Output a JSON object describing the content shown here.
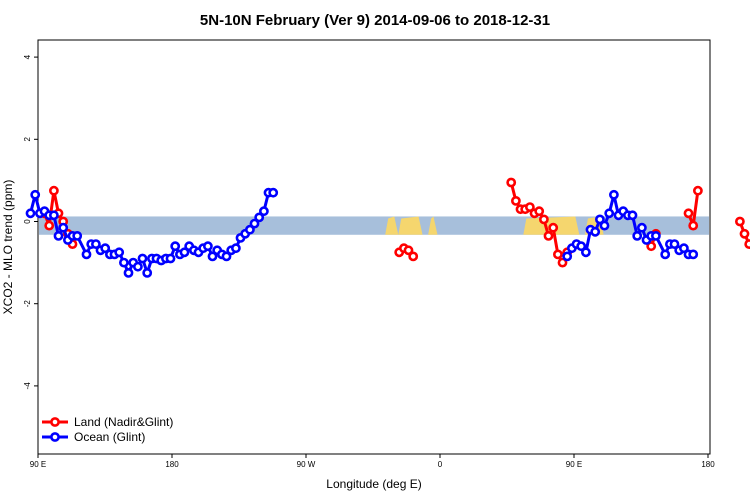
{
  "chart_data": {
    "type": "line",
    "title": "5N-10N February (Ver 9)   2014-09-06 to 2018-12-31",
    "xlabel": "Longitude (deg E)",
    "ylabel": "XCO2 - MLO trend (ppm)",
    "xlim": [
      90,
      450
    ],
    "ylim": [
      -5.5,
      4.2
    ],
    "x_ticks": [
      {
        "value": 90,
        "label": "90 E"
      },
      {
        "value": 180,
        "label": "180"
      },
      {
        "value": 270,
        "label": "90 W"
      },
      {
        "value": 360,
        "label": "0"
      },
      {
        "value": 450,
        "label": "90 E"
      },
      {
        "value": 540,
        "label": "180"
      }
    ],
    "y_ticks": [
      {
        "value": 4,
        "label": "4"
      },
      {
        "value": 2,
        "label": "2"
      },
      {
        "value": 0,
        "label": "0"
      },
      {
        "value": -2,
        "label": "-2"
      },
      {
        "value": -4,
        "label": "-4"
      }
    ],
    "legend_position": "bottom-left",
    "reference_band": {
      "y_min": -0.25,
      "y_max": 0.05,
      "color": "#a7bfdb",
      "land_color": "#f5d66e"
    },
    "series": [
      {
        "name": "Land (Nadir&Glint)",
        "color": "#ff0000",
        "segments": [
          [
            [
              93.5,
              0.2
            ],
            [
              96,
              -0.1
            ],
            [
              98.5,
              0.75
            ],
            [
              101,
              0.2
            ],
            [
              103.5,
              0
            ],
            [
              106,
              -0.3
            ],
            [
              108.5,
              -0.55
            ]
          ],
          [
            [
              283.5,
              -0.75
            ],
            [
              286,
              -0.65
            ],
            [
              288.5,
              -0.7
            ],
            [
              291,
              -0.85
            ]
          ],
          [
            [
              343.5,
              0.95
            ],
            [
              346,
              0.5
            ],
            [
              348.5,
              0.3
            ],
            [
              351,
              0.3
            ],
            [
              353.5,
              0.35
            ],
            [
              356,
              0.2
            ],
            [
              358.5,
              0.25
            ],
            [
              361,
              0.05
            ],
            [
              363.5,
              -0.35
            ],
            [
              366,
              -0.15
            ],
            [
              368.5,
              -0.8
            ],
            [
              371,
              -1.0
            ],
            [
              373.5,
              -0.75
            ]
          ],
          [
            [
              418.5,
              -0.6
            ],
            [
              421,
              -0.3
            ]
          ],
          [
            [
              438.5,
              0.2
            ],
            [
              441,
              -0.1
            ],
            [
              443.5,
              0.75
            ]
          ],
          [
            [
              466,
              0.0
            ],
            [
              468.5,
              -0.3
            ],
            [
              471,
              -0.55
            ]
          ]
        ]
      },
      {
        "name": "Ocean (Glint)",
        "color": "#0000ff",
        "segments": [
          [
            [
              86,
              0.2
            ],
            [
              88.5,
              0.65
            ],
            [
              91,
              0.2
            ],
            [
              93.5,
              0.25
            ],
            [
              96,
              0.15
            ],
            [
              98.5,
              0.15
            ],
            [
              101,
              -0.35
            ],
            [
              103.5,
              -0.15
            ],
            [
              106,
              -0.45
            ],
            [
              108.5,
              -0.35
            ],
            [
              111,
              -0.35
            ],
            [
              116,
              -0.8
            ],
            [
              118.5,
              -0.55
            ],
            [
              121,
              -0.55
            ],
            [
              123.5,
              -0.7
            ],
            [
              126,
              -0.65
            ],
            [
              128.5,
              -0.8
            ],
            [
              131,
              -0.8
            ],
            [
              133.5,
              -0.75
            ],
            [
              136,
              -1.0
            ],
            [
              138.5,
              -1.25
            ],
            [
              141,
              -1.0
            ],
            [
              143.5,
              -1.1
            ],
            [
              146,
              -0.9
            ],
            [
              148.5,
              -1.25
            ],
            [
              151,
              -0.9
            ],
            [
              153.5,
              -0.9
            ],
            [
              156,
              -0.95
            ],
            [
              158.5,
              -0.9
            ],
            [
              161,
              -0.9
            ],
            [
              163.5,
              -0.6
            ],
            [
              166,
              -0.8
            ],
            [
              168.5,
              -0.75
            ],
            [
              171,
              -0.6
            ],
            [
              173.5,
              -0.7
            ],
            [
              176,
              -0.75
            ],
            [
              178.5,
              -0.65
            ],
            [
              181,
              -0.6
            ],
            [
              183.5,
              -0.85
            ],
            [
              186,
              -0.7
            ],
            [
              188.5,
              -0.8
            ],
            [
              191,
              -0.85
            ],
            [
              193.5,
              -0.7
            ],
            [
              196,
              -0.65
            ],
            [
              198.5,
              -0.4
            ],
            [
              201,
              -0.3
            ],
            [
              203.5,
              -0.2
            ],
            [
              206,
              -0.05
            ],
            [
              208.5,
              0.1
            ],
            [
              211,
              0.25
            ],
            [
              213.5,
              0.7
            ],
            [
              216,
              0.7
            ]
          ],
          [
            [
              373.5,
              -0.85
            ],
            [
              376,
              -0.65
            ],
            [
              378.5,
              -0.55
            ],
            [
              381,
              -0.6
            ],
            [
              383.5,
              -0.75
            ],
            [
              386,
              -0.2
            ],
            [
              388.5,
              -0.25
            ],
            [
              391,
              0.05
            ],
            [
              393.5,
              -0.1
            ],
            [
              396,
              0.2
            ],
            [
              398.5,
              0.65
            ],
            [
              401,
              0.15
            ],
            [
              403.5,
              0.25
            ],
            [
              406,
              0.15
            ],
            [
              408.5,
              0.15
            ],
            [
              411,
              -0.35
            ],
            [
              413.5,
              -0.15
            ],
            [
              416,
              -0.45
            ],
            [
              418.5,
              -0.35
            ],
            [
              421,
              -0.35
            ],
            [
              426,
              -0.8
            ],
            [
              428.5,
              -0.55
            ],
            [
              431,
              -0.55
            ],
            [
              433.5,
              -0.7
            ],
            [
              436,
              -0.65
            ],
            [
              438.5,
              -0.8
            ],
            [
              441,
              -0.8
            ]
          ]
        ]
      }
    ]
  }
}
